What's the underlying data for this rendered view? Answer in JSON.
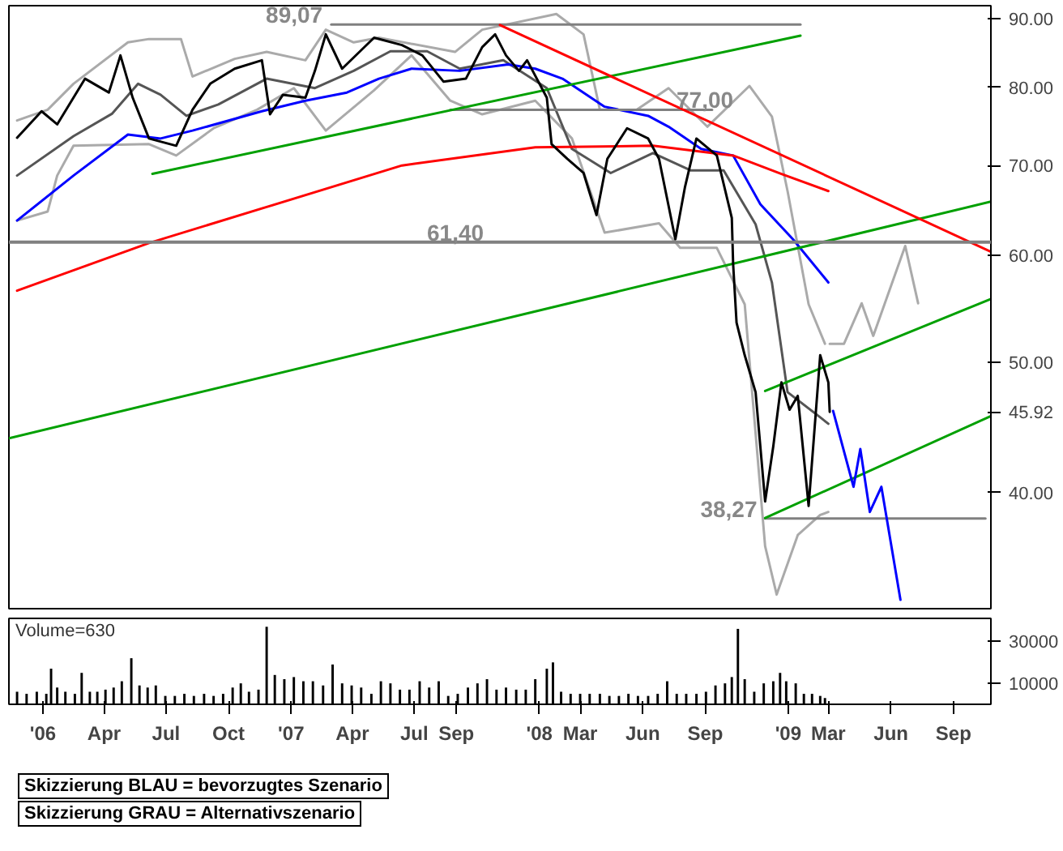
{
  "chart_data": [
    {
      "type": "line",
      "xlim": [
        "2005-11-12",
        "2009-10-26"
      ],
      "ylim": [
        32.8,
        92
      ],
      "log": "y",
      "tick_labels": "y",
      "grid": false,
      "yticks": [
        {
          "value": 40,
          "label": "40.00"
        },
        {
          "value": 45.92,
          "label": "45.92"
        },
        {
          "value": 50,
          "label": "50.00"
        },
        {
          "value": 60,
          "label": "60.00"
        },
        {
          "value": 70,
          "label": "70.00"
        },
        {
          "value": 80,
          "label": "80.00"
        },
        {
          "value": 90,
          "label": "90.00"
        }
      ],
      "series": [
        {
          "color": "#aaaaaa",
          "x": [
            "2005-11-24",
            "2006-01-08",
            "2006-02-15",
            "2006-05-06",
            "2006-06-06",
            "2006-07-23",
            "2006-08-09",
            "2006-10-10",
            "2006-11-26",
            "2007-01-22",
            "2007-02-21",
            "2007-04-03",
            "2007-05-10",
            "2007-08-30",
            "2007-10-09",
            "2008-01-26",
            "2008-03-06",
            "2008-03-30",
            "2008-05-23",
            "2008-07-09",
            "2008-09-04",
            "2008-11-05",
            "2008-12-08",
            "2008-12-31",
            "2009-01-31",
            "2009-02-24"
          ],
          "values": [
            75.6,
            77.0,
            80.5,
            86.4,
            86.9,
            86.9,
            81.5,
            84.0,
            85.0,
            83.8,
            88.3,
            86.4,
            87.1,
            85.0,
            88.3,
            90.7,
            87.6,
            77.0,
            77.0,
            79.9,
            74.8,
            80.2,
            76.1,
            67.0,
            55.2,
            51.6
          ]
        },
        {
          "color": "#aaaaaa",
          "x": [
            "2005-11-24",
            "2006-01-08",
            "2006-01-22",
            "2006-02-15",
            "2006-06-06",
            "2006-07-16",
            "2006-09-09",
            "2006-11-12",
            "2007-01-05",
            "2007-02-21",
            "2007-05-03",
            "2007-06-27",
            "2007-08-23",
            "2007-10-09",
            "2007-12-26",
            "2008-02-18",
            "2008-04-06",
            "2008-06-25",
            "2008-07-26",
            "2008-09-18",
            "2008-10-29",
            "2008-11-28",
            "2008-12-15",
            "2009-01-15",
            "2009-02-17",
            "2009-03-01"
          ],
          "values": [
            63.7,
            64.7,
            68.8,
            72.4,
            72.6,
            71.2,
            74.6,
            77.0,
            79.9,
            74.3,
            79.6,
            84.5,
            78.2,
            76.4,
            78.2,
            73.3,
            62.4,
            63.4,
            60.8,
            60.8,
            55.2,
            36.5,
            33.6,
            37.2,
            38.5,
            38.7
          ]
        },
        {
          "color": "#555555",
          "x": [
            "2005-11-24",
            "2006-02-15",
            "2006-04-13",
            "2006-05-21",
            "2006-06-23",
            "2006-07-31",
            "2006-09-16",
            "2006-11-26",
            "2007-02-05",
            "2007-04-03",
            "2007-05-27",
            "2007-07-20",
            "2007-09-06",
            "2007-11-09",
            "2008-01-12",
            "2008-02-18",
            "2008-04-15",
            "2008-06-16",
            "2008-08-11",
            "2008-09-28",
            "2008-11-14",
            "2008-12-08",
            "2008-12-31",
            "2009-02-17",
            "2009-03-01"
          ],
          "values": [
            68.8,
            73.6,
            76.5,
            80.5,
            79.0,
            76.2,
            77.7,
            81.2,
            79.9,
            82.3,
            85.1,
            85.1,
            82.6,
            83.8,
            79.9,
            72.0,
            69.1,
            71.5,
            69.4,
            69.4,
            63.3,
            57.3,
            47.5,
            45.5,
            45.0
          ]
        },
        {
          "color": "#0000ff",
          "x": [
            "2005-11-24",
            "2006-02-15",
            "2006-05-06",
            "2006-06-23",
            "2006-08-09",
            "2006-11-19",
            "2007-01-22",
            "2007-03-24",
            "2007-05-10",
            "2007-06-27",
            "2007-09-06",
            "2007-11-16",
            "2007-12-26",
            "2008-02-04",
            "2008-04-06",
            "2008-06-09",
            "2008-07-09",
            "2008-08-26",
            "2008-10-12",
            "2008-11-21",
            "2009-01-08",
            "2009-03-01"
          ],
          "values": [
            63.7,
            68.8,
            73.8,
            73.3,
            74.3,
            76.8,
            78.2,
            79.3,
            81.2,
            82.6,
            82.3,
            83.2,
            82.6,
            81.2,
            77.4,
            76.2,
            74.8,
            72.0,
            71.2,
            65.5,
            61.7,
            57.3
          ]
        },
        {
          "color": "#ff0000",
          "x": [
            "2005-11-24",
            "2006-06-06",
            "2006-11-26",
            "2007-06-13",
            "2007-12-26",
            "2008-06-16",
            "2008-10-12",
            "2008-12-22",
            "2009-03-01"
          ],
          "values": [
            56.5,
            61.3,
            65.2,
            70.0,
            72.2,
            72.4,
            71.2,
            69.0,
            67.0
          ]
        },
        {
          "color": "#808080",
          "x": [
            "2007-03-01",
            "2009-01-19"
          ],
          "values": [
            89.07,
            89.07
          ]
        },
        {
          "color": "#808080",
          "x": [
            "2007-08-23",
            "2008-09-11"
          ],
          "values": [
            77.0,
            77.0
          ]
        },
        {
          "color": "#808080",
          "x": [
            "2008-11-28",
            "2009-10-18"
          ],
          "values": [
            38.27,
            38.27
          ]
        },
        {
          "color": "#00a000",
          "x": [
            "2006-06-11",
            "2009-01-19"
          ],
          "values": [
            69.0,
            87.4
          ]
        },
        {
          "color": "#00a000",
          "x": [
            "2005-11-12",
            "2009-10-26"
          ],
          "values": [
            43.9,
            65.8
          ]
        },
        {
          "color": "#00a000",
          "x": [
            "2008-11-28",
            "2009-10-26"
          ],
          "values": [
            38.3,
            45.6
          ]
        },
        {
          "color": "#00a000",
          "x": [
            "2008-11-28",
            "2009-10-26"
          ],
          "values": [
            47.6,
            55.7
          ]
        },
        {
          "color": "#ff0000",
          "x": [
            "2007-11-04",
            "2009-10-26"
          ],
          "values": [
            89.0,
            60.4
          ]
        },
        {
          "color": "#000000",
          "x": [
            "2005-11-24",
            "2005-12-30",
            "2006-01-22",
            "2006-03-04",
            "2006-04-08",
            "2006-04-25",
            "2006-05-13",
            "2006-06-06",
            "2006-07-16",
            "2006-08-09",
            "2006-09-04",
            "2006-10-10",
            "2006-11-19",
            "2006-12-01",
            "2006-12-20",
            "2007-01-22",
            "2007-02-05",
            "2007-02-21",
            "2007-03-17",
            "2007-05-03",
            "2007-06-13",
            "2007-07-13",
            "2007-08-13",
            "2007-09-15",
            "2007-10-09",
            "2007-10-28",
            "2007-11-13",
            "2007-12-02",
            "2007-12-14",
            "2008-01-12",
            "2008-01-19",
            "2008-02-11",
            "2008-03-06",
            "2008-03-25",
            "2008-04-10",
            "2008-05-09",
            "2008-06-09",
            "2008-06-25",
            "2008-07-19",
            "2008-08-02",
            "2008-08-19",
            "2008-09-18",
            "2008-10-10",
            "2008-10-12",
            "2008-10-17",
            "2008-10-29",
            "2008-11-14",
            "2008-11-28",
            "2008-12-10",
            "2008-12-22",
            "2009-01-03",
            "2009-01-15",
            "2009-01-31",
            "2009-02-17",
            "2009-03-01",
            "2009-03-03"
          ],
          "values": [
            73.4,
            76.8,
            75.1,
            81.2,
            79.3,
            84.5,
            78.6,
            73.3,
            72.4,
            77.0,
            80.5,
            82.6,
            83.8,
            76.4,
            79.0,
            78.6,
            82.3,
            87.6,
            82.6,
            87.1,
            86.0,
            84.5,
            80.8,
            81.2,
            85.7,
            87.6,
            84.5,
            82.3,
            83.8,
            78.6,
            72.6,
            70.8,
            69.1,
            64.3,
            70.8,
            74.6,
            73.3,
            70.8,
            61.7,
            67.4,
            73.3,
            71.2,
            64.0,
            59.1,
            53.5,
            50.6,
            47.5,
            39.4,
            43.3,
            48.3,
            46.1,
            47.2,
            39.1,
            50.6,
            48.3,
            45.92
          ]
        },
        {
          "color": "#0000ff",
          "x": [
            "2009-03-08",
            "2009-04-07",
            "2009-04-17",
            "2009-05-01",
            "2009-05-18",
            "2009-06-15"
          ],
          "values": [
            46.0,
            40.4,
            43.1,
            38.7,
            40.4,
            33.3
          ]
        },
        {
          "color": "#aaaaaa",
          "x": [
            "2009-03-03",
            "2009-03-24",
            "2009-04-19",
            "2009-05-06",
            "2009-06-22",
            "2009-07-11"
          ],
          "values": [
            51.6,
            51.6,
            55.3,
            52.3,
            61.0,
            55.3
          ]
        }
      ],
      "ref_lines": [
        {
          "axis": "y",
          "value": 61.4,
          "color": "#808080"
        }
      ],
      "annotations": [
        {
          "text": "89,07",
          "x": "2007-02-21",
          "y": 89.07
        },
        {
          "text": "77,00",
          "x": "2008-10-17",
          "y": 77.0
        },
        {
          "text": "61,40",
          "x": "2007-10-16",
          "y": 61.4
        },
        {
          "text": "38,27",
          "x": "2008-11-21",
          "y": 38.27
        },
        "Skizzierung BLAU = bevorzugtes Szenario",
        "Skizzierung GRAU = Alternativszenario"
      ]
    },
    {
      "type": "bar",
      "title": "Volume=630",
      "xlim": [
        "2005-11-12",
        "2009-10-26"
      ],
      "ylim": [
        0,
        41000
      ],
      "yticks": [
        10000,
        30000
      ],
      "grid": false,
      "color": "#000000",
      "xticks": [
        {
          "value": "2006-01-01",
          "label": "'06"
        },
        {
          "value": "2006-04-01",
          "label": "Apr"
        },
        {
          "value": "2006-07-01",
          "label": "Jul"
        },
        {
          "value": "2006-10-01",
          "label": "Oct"
        },
        {
          "value": "2007-01-01",
          "label": "'07"
        },
        {
          "value": "2007-04-01",
          "label": "Apr"
        },
        {
          "value": "2007-07-01",
          "label": "Jul"
        },
        {
          "value": "2007-09-01",
          "label": "Sep"
        },
        {
          "value": "2008-01-01",
          "label": "'08"
        },
        {
          "value": "2008-03-01",
          "label": "Mar"
        },
        {
          "value": "2008-06-01",
          "label": "Jun"
        },
        {
          "value": "2008-09-01",
          "label": "Sep"
        },
        {
          "value": "2009-01-01",
          "label": "'09"
        },
        {
          "value": "2009-03-01",
          "label": "Mar"
        },
        {
          "value": "2009-06-01",
          "label": "Jun"
        },
        {
          "value": "2009-09-01",
          "label": "Sep"
        }
      ],
      "x": [
        "2005-11-24",
        "2005-12-08",
        "2005-12-23",
        "2006-01-06",
        "2006-01-13",
        "2006-01-22",
        "2006-02-03",
        "2006-02-17",
        "2006-02-27",
        "2006-03-11",
        "2006-03-22",
        "2006-04-03",
        "2006-04-15",
        "2006-04-27",
        "2006-05-11",
        "2006-05-23",
        "2006-06-04",
        "2006-06-16",
        "2006-06-30",
        "2006-07-14",
        "2006-07-28",
        "2006-08-11",
        "2006-08-26",
        "2006-09-09",
        "2006-09-23",
        "2006-10-07",
        "2006-10-19",
        "2006-10-31",
        "2006-11-14",
        "2006-11-26",
        "2006-12-08",
        "2006-12-22",
        "2007-01-05",
        "2007-01-19",
        "2007-02-02",
        "2007-02-17",
        "2007-03-03",
        "2007-03-17",
        "2007-03-31",
        "2007-04-14",
        "2007-04-29",
        "2007-05-13",
        "2007-05-27",
        "2007-06-10",
        "2007-06-24",
        "2007-07-09",
        "2007-07-23",
        "2007-08-06",
        "2007-08-20",
        "2007-09-03",
        "2007-09-18",
        "2007-10-02",
        "2007-10-16",
        "2007-10-30",
        "2007-11-13",
        "2007-11-28",
        "2007-12-12",
        "2007-12-26",
        "2008-01-12",
        "2008-01-21",
        "2008-02-02",
        "2008-02-16",
        "2008-03-01",
        "2008-03-15",
        "2008-03-30",
        "2008-04-13",
        "2008-04-27",
        "2008-05-11",
        "2008-05-25",
        "2008-06-09",
        "2008-06-23",
        "2008-07-07",
        "2008-07-21",
        "2008-08-04",
        "2008-08-19",
        "2008-09-02",
        "2008-09-16",
        "2008-09-30",
        "2008-10-10",
        "2008-10-19",
        "2008-10-29",
        "2008-11-12",
        "2008-11-26",
        "2008-12-10",
        "2008-12-20",
        "2008-12-29",
        "2009-01-12",
        "2009-01-24",
        "2009-02-05",
        "2009-02-17",
        "2009-02-24"
      ],
      "values": [
        6000,
        5000,
        6000,
        5000,
        17000,
        8000,
        6000,
        5000,
        15000,
        6000,
        6000,
        7000,
        8000,
        11000,
        22000,
        9000,
        8000,
        9000,
        4000,
        4000,
        5000,
        4000,
        5000,
        4000,
        5000,
        8000,
        10000,
        6000,
        7000,
        37000,
        14000,
        12000,
        13000,
        11000,
        11000,
        9000,
        19000,
        10000,
        9000,
        8000,
        5000,
        11000,
        10000,
        7000,
        7000,
        11000,
        8000,
        11000,
        4000,
        5000,
        8000,
        10000,
        12000,
        7000,
        8000,
        7000,
        7000,
        12000,
        17000,
        20000,
        6000,
        5000,
        5000,
        5000,
        5000,
        4000,
        4000,
        5000,
        4000,
        4000,
        5000,
        11000,
        5000,
        5000,
        5000,
        6000,
        9000,
        10000,
        13000,
        36000,
        12000,
        6000,
        10000,
        11000,
        15000,
        11000,
        10000,
        5000,
        5000,
        4000,
        3000
      ]
    }
  ]
}
